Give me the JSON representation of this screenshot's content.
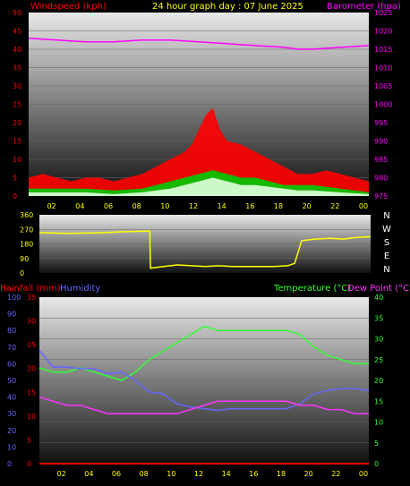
{
  "header": {
    "windspeed_label": "Windspeed (kph)",
    "title": "24 hour graph day : 07 June 2025",
    "barometer_label": "Barometer (hpa)"
  },
  "footer": {
    "rainfall_label": "Rainfall (mm)",
    "humidity_label": "Humidity",
    "temperature_label": "Temperature (°C)",
    "dewpoint_label": "Dew Point (°C)"
  },
  "colors": {
    "windspeed": "#ff0000",
    "gust": "#ff0000",
    "wind_mid": "#00cc00",
    "wind_light": "#e0ffe0",
    "barometer": "#ff00ff",
    "direction": "#ffff00",
    "temperature": "#33ff33",
    "dewpoint": "#ff33ff",
    "humidity": "#6666ff",
    "rainfall": "#ff0000",
    "title": "#ffff00",
    "hour_labels": "#ffff00"
  },
  "chart_data": [
    {
      "id": "wind",
      "type": "area",
      "title": "24 hour graph day : 07 June 2025",
      "x_ticks": [
        "02",
        "04",
        "06",
        "08",
        "10",
        "12",
        "14",
        "16",
        "18",
        "20",
        "22",
        "00"
      ],
      "xlim": [
        0,
        24
      ],
      "left_axis": {
        "label": "Windspeed (kph)",
        "ticks": [
          "0",
          "5",
          "10",
          "15",
          "20",
          "25",
          "30",
          "35",
          "40",
          "45",
          "50"
        ],
        "ylim": [
          0,
          50
        ]
      },
      "right_axis": {
        "label": "Barometer (hpa)",
        "ticks": [
          "975",
          "980",
          "985",
          "990",
          "995",
          "1000",
          "1005",
          "1010",
          "1015",
          "1020",
          "1025"
        ],
        "ylim": [
          975,
          1025
        ]
      },
      "series": [
        {
          "key": "gust",
          "color": "#ff0000",
          "x": [
            0,
            1,
            2,
            3,
            4,
            5,
            6,
            7,
            8,
            9,
            10,
            11,
            11.5,
            12,
            12.5,
            13,
            13.5,
            14,
            15,
            16,
            17,
            18,
            19,
            20,
            21,
            22,
            23,
            24
          ],
          "y": [
            5,
            6,
            5,
            4,
            5,
            5,
            4,
            5,
            6,
            8,
            10,
            12,
            14,
            18,
            22,
            24,
            18,
            15,
            14,
            12,
            10,
            8,
            6,
            6,
            7,
            6,
            5,
            4
          ]
        },
        {
          "key": "wind_mid",
          "color": "#00cc00",
          "x": [
            0,
            2,
            4,
            6,
            8,
            9,
            10,
            11,
            12,
            13,
            14,
            15,
            16,
            17,
            18,
            19,
            20,
            22,
            24
          ],
          "y": [
            2,
            2,
            2,
            1.5,
            2,
            3,
            4,
            5,
            6,
            7,
            6,
            5,
            5,
            4,
            3,
            3,
            3,
            2,
            1
          ]
        },
        {
          "key": "wind_light",
          "color": "#e0ffe0",
          "x": [
            0,
            2,
            4,
            6,
            8,
            9,
            10,
            11,
            12,
            13,
            14,
            15,
            16,
            17,
            18,
            19,
            20,
            22,
            24
          ],
          "y": [
            1,
            1,
            1,
            0.5,
            1,
            1.5,
            2,
            3,
            4,
            5,
            4,
            3,
            3,
            2.5,
            2,
            1.5,
            1.5,
            1,
            0.5
          ]
        },
        {
          "key": "barometer",
          "color": "#ff00ff",
          "axis": "right",
          "x": [
            0,
            2,
            4,
            6,
            8,
            10,
            12,
            14,
            16,
            18,
            19,
            20,
            22,
            24
          ],
          "y": [
            1018,
            1017.5,
            1017,
            1017,
            1017.5,
            1017.5,
            1017,
            1016.5,
            1016,
            1015.5,
            1015,
            1015,
            1015.5,
            1016
          ]
        }
      ]
    },
    {
      "id": "direction",
      "type": "line",
      "x_ticks": [
        "02",
        "04",
        "06",
        "08",
        "10",
        "12",
        "14",
        "16",
        "18",
        "20",
        "22",
        "00"
      ],
      "xlim": [
        0,
        24
      ],
      "left_axis": {
        "ticks": [
          "0",
          "90",
          "180",
          "270",
          "360"
        ],
        "ylim": [
          0,
          360
        ]
      },
      "compass": [
        "N",
        "W",
        "S",
        "E",
        "N"
      ],
      "series": [
        {
          "key": "direction",
          "color": "#ffff00",
          "x": [
            0,
            2,
            4,
            6,
            8,
            8.05,
            9,
            10,
            11,
            12,
            13,
            14,
            15,
            16,
            17,
            18,
            18.5,
            19,
            20,
            21,
            22,
            23,
            24
          ],
          "y": [
            250,
            245,
            248,
            255,
            260,
            30,
            40,
            50,
            45,
            40,
            45,
            40,
            40,
            40,
            40,
            45,
            60,
            200,
            210,
            215,
            210,
            220,
            225
          ]
        }
      ]
    },
    {
      "id": "temperature",
      "type": "line",
      "x_ticks": [
        "02",
        "04",
        "06",
        "08",
        "10",
        "12",
        "14",
        "16",
        "18",
        "20",
        "22",
        "00"
      ],
      "xlim": [
        0,
        24
      ],
      "left_axis": {
        "label": "Rainfall (mm)",
        "ticks": [
          "0",
          "5",
          "10",
          "15",
          "20",
          "25",
          "30",
          "35"
        ],
        "ylim": [
          0,
          35
        ]
      },
      "humidity_axis": {
        "label": "Humidity",
        "ticks": [
          "0",
          "10",
          "20",
          "30",
          "40",
          "50",
          "60",
          "70",
          "80",
          "90",
          "100"
        ],
        "ylim": [
          0,
          100
        ]
      },
      "right_axis": {
        "label": "Temperature (°C)",
        "label2": "Dew Point (°C)",
        "ticks": [
          "0",
          "5",
          "10",
          "15",
          "20",
          "25",
          "30",
          "35",
          "40"
        ],
        "ylim": [
          0,
          40
        ]
      },
      "series": [
        {
          "key": "temperature",
          "color": "#33ff33",
          "axis": "right",
          "x": [
            0,
            1,
            2,
            3,
            4,
            5,
            6,
            7,
            8,
            9,
            10,
            11,
            12,
            13,
            14,
            15,
            16,
            17,
            18,
            19,
            20,
            21,
            22,
            23,
            24
          ],
          "y": [
            23,
            22,
            22,
            23,
            22,
            21,
            20,
            22,
            25,
            27,
            29,
            31,
            33,
            32,
            32,
            32,
            32,
            32,
            32,
            31,
            28,
            26,
            25,
            24,
            24
          ]
        },
        {
          "key": "humidity",
          "color": "#6666ff",
          "axis": "humidity",
          "x": [
            0,
            1,
            2,
            3,
            4,
            5,
            6,
            7,
            8,
            9,
            10,
            11,
            12,
            13,
            14,
            15,
            16,
            17,
            18,
            19,
            20,
            21,
            22,
            23,
            24
          ],
          "y": [
            68,
            58,
            58,
            57,
            57,
            54,
            55,
            50,
            43,
            42,
            36,
            34,
            33,
            32,
            33,
            33,
            33,
            33,
            33,
            36,
            42,
            44,
            45,
            45,
            44
          ]
        },
        {
          "key": "dewpoint",
          "color": "#ff33ff",
          "axis": "right",
          "x": [
            0,
            1,
            2,
            3,
            4,
            5,
            6,
            7,
            8,
            9,
            10,
            11,
            12,
            13,
            14,
            15,
            16,
            17,
            18,
            19,
            20,
            21,
            22,
            23,
            24
          ],
          "y": [
            16,
            15,
            14,
            14,
            13,
            12,
            12,
            12,
            12,
            12,
            12,
            13,
            14,
            15,
            15,
            15,
            15,
            15,
            15,
            14,
            14,
            13,
            13,
            12,
            12
          ]
        },
        {
          "key": "rainfall",
          "color": "#ff0000",
          "axis": "left",
          "x": [
            0,
            24
          ],
          "y": [
            0,
            0
          ]
        }
      ]
    }
  ]
}
